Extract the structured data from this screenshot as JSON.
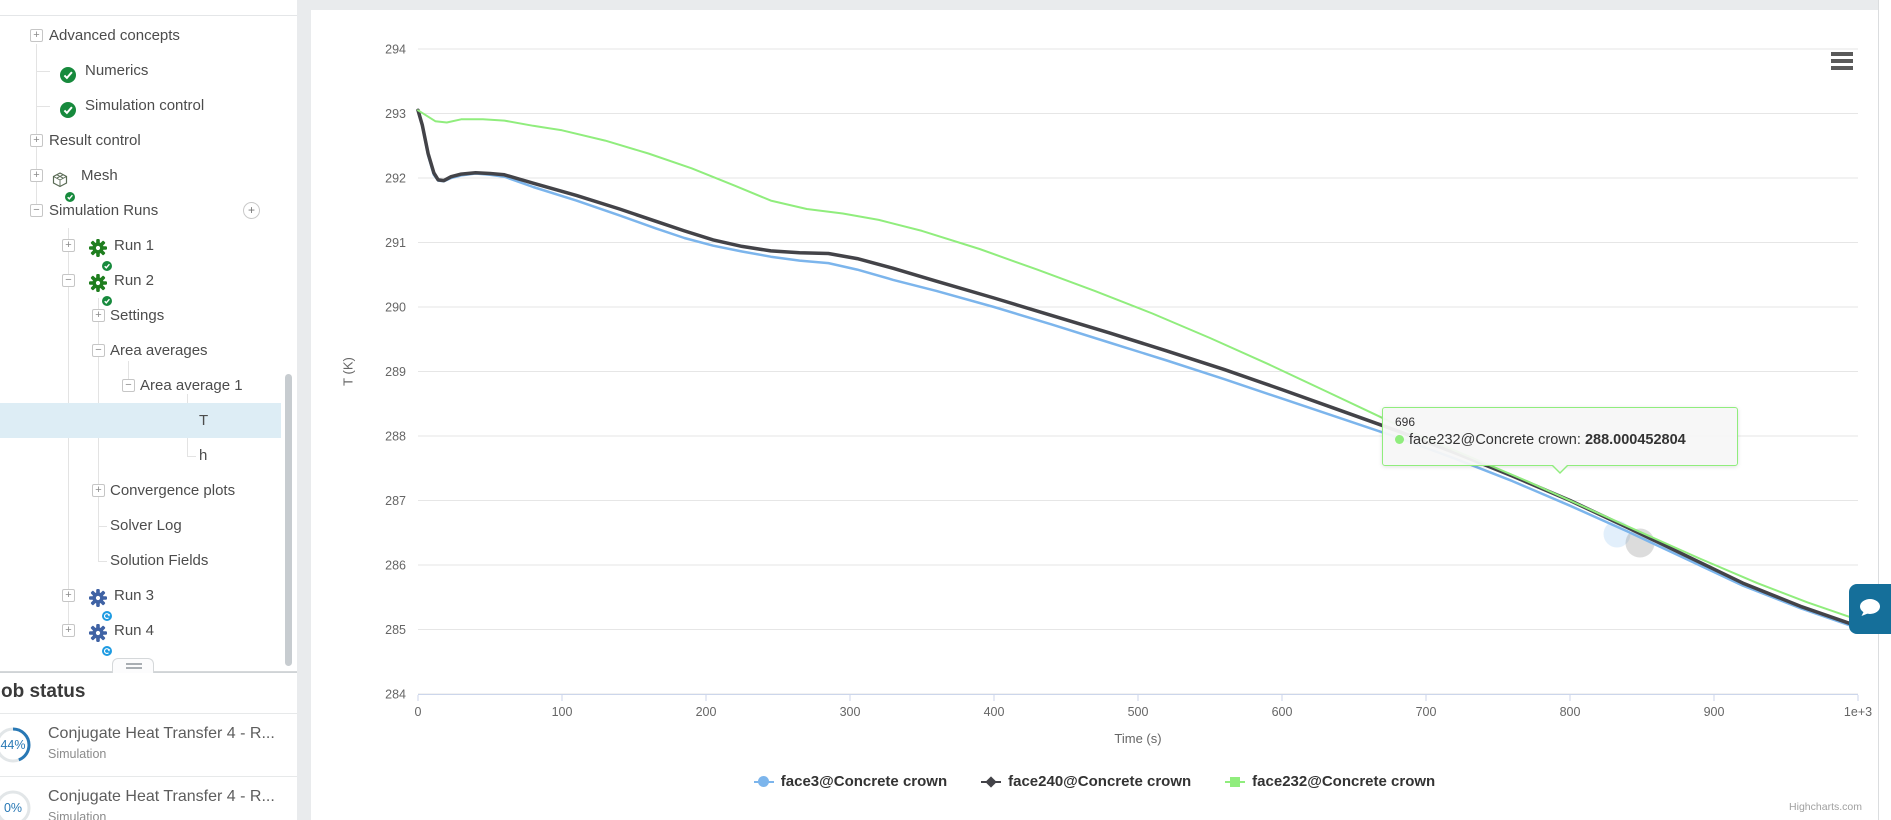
{
  "sidebar": {
    "tree": [
      {
        "label": "Advanced concepts",
        "level": 1,
        "expander": "+"
      },
      {
        "label": "Numerics",
        "level": 2,
        "icon": "check"
      },
      {
        "label": "Simulation control",
        "level": 2,
        "icon": "check"
      },
      {
        "label": "Result control",
        "level": 1,
        "expander": "+"
      },
      {
        "label": "Mesh",
        "level": 1,
        "expander": "+",
        "icon": "mesh"
      },
      {
        "label": "Simulation Runs",
        "level": 1,
        "expander": "-",
        "add_button": "+"
      },
      {
        "label": "Run 1",
        "level": 2,
        "expander": "+",
        "icon": "gear-done"
      },
      {
        "label": "Run 2",
        "level": 2,
        "expander": "-",
        "icon": "gear-done"
      },
      {
        "label": "Settings",
        "level": 3,
        "expander": "+"
      },
      {
        "label": "Area averages",
        "level": 3,
        "expander": "-"
      },
      {
        "label": "Area average 1",
        "level": 4,
        "expander": "-"
      },
      {
        "label": "T",
        "level": 5,
        "selected": true
      },
      {
        "label": "h",
        "level": 5
      },
      {
        "label": "Convergence plots",
        "level": 3,
        "expander": "+"
      },
      {
        "label": "Solver Log",
        "level": 3
      },
      {
        "label": "Solution Fields",
        "level": 3
      },
      {
        "label": "Run 3",
        "level": 2,
        "expander": "+",
        "icon": "gear-running"
      },
      {
        "label": "Run 4",
        "level": 2,
        "expander": "+",
        "icon": "gear-running"
      }
    ],
    "icon_colors": {
      "check": "#178a3d",
      "gear_done": "#1f7e1f",
      "gear_running": "#3f62a4",
      "sync_badge": "#1e9be2"
    }
  },
  "job_status": {
    "title": "ob status",
    "accent": "#2878b5",
    "jobs": [
      {
        "percent": 44,
        "percent_label": "44%",
        "name": "Conjugate Heat Transfer 4 - R...",
        "type": "Simulation"
      },
      {
        "percent": 0,
        "percent_label": "0%",
        "name": "Conjugate Heat Transfer 4 - R...",
        "type": "Simulation"
      }
    ]
  },
  "chart_data": {
    "type": "line",
    "title": "",
    "xlabel": "Time (s)",
    "ylabel": "T (K)",
    "xlim": [
      0,
      1000
    ],
    "ylim": [
      284,
      294
    ],
    "yticks": [
      284,
      285,
      286,
      287,
      288,
      289,
      290,
      291,
      292,
      293,
      294
    ],
    "xticks": [
      0,
      100,
      200,
      300,
      400,
      500,
      600,
      700,
      800,
      900,
      1000
    ],
    "xticklabels": [
      "0",
      "100",
      "200",
      "300",
      "400",
      "500",
      "600",
      "700",
      "800",
      "900",
      "1e+3"
    ],
    "grid": "horizontal",
    "legend_position": "bottom",
    "series": [
      {
        "name": "face3@Concrete crown",
        "color": "#7cb5ec",
        "marker": "circle",
        "width": 2.5,
        "points": [
          [
            0,
            293.05
          ],
          [
            3,
            292.8
          ],
          [
            7,
            292.35
          ],
          [
            11,
            292.05
          ],
          [
            14,
            291.96
          ],
          [
            18,
            291.95
          ],
          [
            23,
            292.0
          ],
          [
            30,
            292.04
          ],
          [
            40,
            292.07
          ],
          [
            50,
            292.05
          ],
          [
            60,
            292.02
          ],
          [
            80,
            291.86
          ],
          [
            110,
            291.65
          ],
          [
            140,
            291.42
          ],
          [
            165,
            291.22
          ],
          [
            185,
            291.07
          ],
          [
            205,
            290.95
          ],
          [
            225,
            290.86
          ],
          [
            245,
            290.78
          ],
          [
            265,
            290.72
          ],
          [
            285,
            290.68
          ],
          [
            305,
            290.58
          ],
          [
            330,
            290.42
          ],
          [
            360,
            290.25
          ],
          [
            400,
            290.0
          ],
          [
            440,
            289.73
          ],
          [
            480,
            289.45
          ],
          [
            520,
            289.17
          ],
          [
            560,
            288.88
          ],
          [
            600,
            288.58
          ],
          [
            640,
            288.28
          ],
          [
            680,
            287.98
          ],
          [
            720,
            287.65
          ],
          [
            760,
            287.3
          ],
          [
            800,
            286.92
          ],
          [
            840,
            286.52
          ],
          [
            880,
            286.1
          ],
          [
            920,
            285.68
          ],
          [
            960,
            285.33
          ],
          [
            1000,
            285.02
          ]
        ]
      },
      {
        "name": "face240@Concrete crown",
        "color": "#434348",
        "marker": "diamond",
        "width": 3.5,
        "points": [
          [
            0,
            293.05
          ],
          [
            3,
            292.82
          ],
          [
            7,
            292.38
          ],
          [
            11,
            292.08
          ],
          [
            14,
            291.97
          ],
          [
            18,
            291.96
          ],
          [
            23,
            292.02
          ],
          [
            30,
            292.06
          ],
          [
            40,
            292.08
          ],
          [
            50,
            292.07
          ],
          [
            60,
            292.05
          ],
          [
            80,
            291.92
          ],
          [
            110,
            291.73
          ],
          [
            140,
            291.52
          ],
          [
            165,
            291.33
          ],
          [
            185,
            291.18
          ],
          [
            205,
            291.04
          ],
          [
            225,
            290.94
          ],
          [
            245,
            290.87
          ],
          [
            265,
            290.84
          ],
          [
            285,
            290.83
          ],
          [
            305,
            290.75
          ],
          [
            330,
            290.6
          ],
          [
            360,
            290.4
          ],
          [
            400,
            290.14
          ],
          [
            440,
            289.87
          ],
          [
            480,
            289.6
          ],
          [
            520,
            289.32
          ],
          [
            560,
            289.03
          ],
          [
            600,
            288.72
          ],
          [
            640,
            288.4
          ],
          [
            680,
            288.08
          ],
          [
            720,
            287.74
          ],
          [
            760,
            287.38
          ],
          [
            800,
            287.0
          ],
          [
            840,
            286.58
          ],
          [
            880,
            286.15
          ],
          [
            920,
            285.72
          ],
          [
            960,
            285.36
          ],
          [
            1000,
            285.05
          ]
        ]
      },
      {
        "name": "face232@Concrete crown",
        "color": "#90ed7d",
        "marker": "square",
        "width": 2,
        "points": [
          [
            0,
            293.05
          ],
          [
            5,
            292.98
          ],
          [
            12,
            292.88
          ],
          [
            20,
            292.86
          ],
          [
            30,
            292.91
          ],
          [
            45,
            292.91
          ],
          [
            60,
            292.89
          ],
          [
            80,
            292.81
          ],
          [
            100,
            292.74
          ],
          [
            130,
            292.58
          ],
          [
            160,
            292.38
          ],
          [
            190,
            292.15
          ],
          [
            220,
            291.88
          ],
          [
            245,
            291.65
          ],
          [
            270,
            291.52
          ],
          [
            295,
            291.45
          ],
          [
            320,
            291.35
          ],
          [
            350,
            291.18
          ],
          [
            390,
            290.9
          ],
          [
            430,
            290.58
          ],
          [
            470,
            290.25
          ],
          [
            510,
            289.9
          ],
          [
            550,
            289.52
          ],
          [
            590,
            289.12
          ],
          [
            630,
            288.7
          ],
          [
            665,
            288.33
          ],
          [
            696,
            288.0
          ],
          [
            730,
            287.68
          ],
          [
            770,
            287.3
          ],
          [
            810,
            286.9
          ],
          [
            850,
            286.5
          ],
          [
            890,
            286.1
          ],
          [
            930,
            285.72
          ],
          [
            965,
            285.42
          ],
          [
            1000,
            285.15
          ]
        ]
      }
    ],
    "tooltip": {
      "header": "696",
      "series": "face232@Concrete crown",
      "separator": ": ",
      "value": "288.000452804"
    },
    "credits": "Highcharts.com",
    "axis_color": "#ccd6eb",
    "grid_color": "#e6e6e6",
    "label_color": "#666666"
  },
  "chat": {
    "tooltip_color": "#156f9a"
  }
}
